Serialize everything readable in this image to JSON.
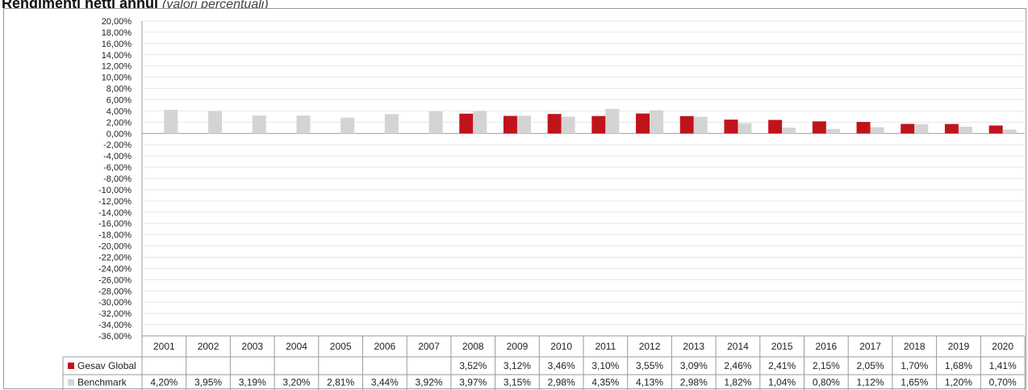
{
  "title": {
    "main": "Rendimenti netti annui",
    "sub": "(valori percentuali)"
  },
  "chart_data": {
    "type": "bar",
    "categories": [
      "2001",
      "2002",
      "2003",
      "2004",
      "2005",
      "2006",
      "2007",
      "2008",
      "2009",
      "2010",
      "2011",
      "2012",
      "2013",
      "2014",
      "2015",
      "2016",
      "2017",
      "2018",
      "2019",
      "2020"
    ],
    "series": [
      {
        "name": "Gesav Global",
        "color": "#c0141c",
        "values": [
          null,
          null,
          null,
          null,
          null,
          null,
          null,
          3.52,
          3.12,
          3.46,
          3.1,
          3.55,
          3.09,
          2.46,
          2.41,
          2.15,
          2.05,
          1.7,
          1.68,
          1.41
        ],
        "labels": [
          "",
          "",
          "",
          "",
          "",
          "",
          "",
          "3,52%",
          "3,12%",
          "3,46%",
          "3,10%",
          "3,55%",
          "3,09%",
          "2,46%",
          "2,41%",
          "2,15%",
          "2,05%",
          "1,70%",
          "1,68%",
          "1,41%"
        ]
      },
      {
        "name": "Benchmark",
        "color": "#d4d4d4",
        "values": [
          4.2,
          3.95,
          3.19,
          3.2,
          2.81,
          3.44,
          3.92,
          3.97,
          3.15,
          2.98,
          4.35,
          4.13,
          2.98,
          1.82,
          1.04,
          0.8,
          1.12,
          1.65,
          1.2,
          0.7
        ],
        "labels": [
          "4,20%",
          "3,95%",
          "3,19%",
          "3,20%",
          "2,81%",
          "3,44%",
          "3,92%",
          "3,97%",
          "3,15%",
          "2,98%",
          "4,35%",
          "4,13%",
          "2,98%",
          "1,82%",
          "1,04%",
          "0,80%",
          "1,12%",
          "1,65%",
          "1,20%",
          "0,70%"
        ]
      }
    ],
    "ylim": [
      -36,
      20
    ],
    "ytick_step": 2,
    "y_tick_labels": [
      "20,00%",
      "18,00%",
      "16,00%",
      "14,00%",
      "12,00%",
      "10,00%",
      "8,00%",
      "6,00%",
      "4,00%",
      "2,00%",
      "0,00%",
      "-2,00%",
      "-4,00%",
      "-6,00%",
      "-8,00%",
      "-10,00%",
      "-12,00%",
      "-14,00%",
      "-16,00%",
      "-18,00%",
      "-20,00%",
      "-22,00%",
      "-24,00%",
      "-26,00%",
      "-28,00%",
      "-30,00%",
      "-32,00%",
      "-34,00%",
      "-36,00%"
    ],
    "grid": true,
    "legend": "data-table"
  }
}
